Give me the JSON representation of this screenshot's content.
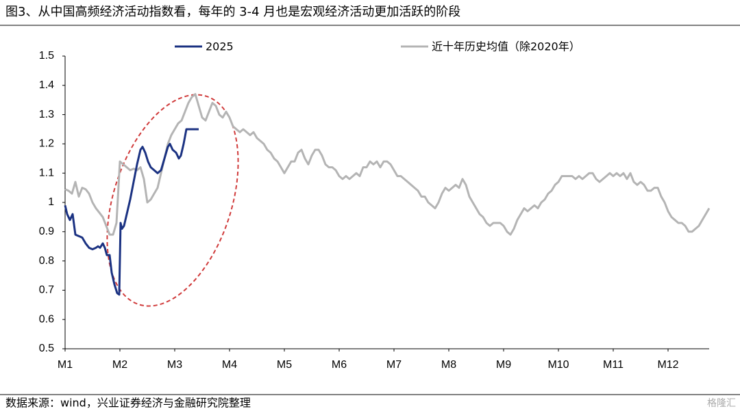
{
  "chart_data": {
    "type": "line",
    "title": "图3、从中国高频经济活动指数看，每年的 3-4 月也是宏观经济活动更加活跃的阶段",
    "xlim": [
      0,
      188
    ],
    "xticks": [
      {
        "value": 0,
        "label": "M1"
      },
      {
        "value": 16,
        "label": "M2"
      },
      {
        "value": 32,
        "label": "M3"
      },
      {
        "value": 48,
        "label": "M4"
      },
      {
        "value": 64,
        "label": "M5"
      },
      {
        "value": 80,
        "label": "M6"
      },
      {
        "value": 96,
        "label": "M7"
      },
      {
        "value": 112,
        "label": "M8"
      },
      {
        "value": 128,
        "label": "M9"
      },
      {
        "value": 144,
        "label": "M10"
      },
      {
        "value": 160,
        "label": "M11"
      },
      {
        "value": 176,
        "label": "M12"
      }
    ],
    "ylim": [
      0.5,
      1.5
    ],
    "yticks": [
      0.5,
      0.6,
      0.7,
      0.8,
      0.9,
      1,
      1.1,
      1.2,
      1.3,
      1.4,
      1.5
    ],
    "grid": false,
    "legend": "top",
    "series": [
      {
        "name": "2025",
        "color": "#1b3282",
        "x": [
          0,
          0.6,
          1.4,
          2.2,
          3,
          4,
          5,
          6,
          7,
          8,
          9,
          9.6,
          10.2,
          11,
          11.6,
          12.2,
          13,
          13.6,
          14.4,
          15.2,
          15.8,
          16.2,
          16.6,
          17.2,
          18,
          19,
          20,
          21,
          22,
          22.6,
          23.4,
          24.2,
          25,
          26,
          27,
          28,
          29,
          30,
          30.6,
          31.4,
          32.4,
          33.2,
          33.8,
          34.6,
          35.4,
          39
        ],
        "values": [
          0.99,
          0.96,
          0.94,
          0.96,
          0.89,
          0.885,
          0.88,
          0.86,
          0.845,
          0.84,
          0.845,
          0.85,
          0.845,
          0.86,
          0.845,
          0.82,
          0.82,
          0.76,
          0.72,
          0.69,
          0.685,
          0.93,
          0.91,
          0.92,
          0.96,
          1.01,
          1.07,
          1.13,
          1.18,
          1.19,
          1.17,
          1.14,
          1.12,
          1.11,
          1.1,
          1.11,
          1.15,
          1.19,
          1.2,
          1.18,
          1.17,
          1.15,
          1.16,
          1.2,
          1.25,
          1.25
        ]
      },
      {
        "name": "近十年历史均值（除2020年）",
        "color": "#b4b4b4",
        "x": [
          0,
          1,
          2,
          3,
          4,
          5,
          6,
          7,
          8,
          9,
          10,
          11,
          12,
          13,
          14,
          15,
          16,
          17,
          18,
          19,
          20,
          21,
          22,
          23,
          24,
          25,
          26,
          27,
          28,
          29,
          30,
          31,
          32,
          33,
          34,
          35,
          36,
          37,
          38,
          39,
          40,
          41,
          42,
          43,
          44,
          45,
          46,
          47,
          48,
          49,
          50,
          51,
          52,
          53,
          54,
          55,
          56,
          57,
          58,
          59,
          60,
          61,
          62,
          63,
          64,
          65,
          66,
          67,
          68,
          69,
          70,
          71,
          72,
          73,
          74,
          75,
          76,
          77,
          78,
          79,
          80,
          81,
          82,
          83,
          84,
          85,
          86,
          87,
          88,
          89,
          90,
          91,
          92,
          93,
          94,
          95,
          96,
          97,
          98,
          99,
          100,
          101,
          102,
          103,
          104,
          105,
          106,
          107,
          108,
          109,
          110,
          111,
          112,
          113,
          114,
          115,
          116,
          117,
          118,
          119,
          120,
          121,
          122,
          123,
          124,
          125,
          126,
          127,
          128,
          129,
          130,
          131,
          132,
          133,
          134,
          135,
          136,
          137,
          138,
          139,
          140,
          141,
          142,
          143,
          144,
          145,
          146,
          147,
          148,
          149,
          150,
          151,
          152,
          153,
          154,
          155,
          156,
          157,
          158,
          159,
          160,
          161,
          162,
          163,
          164,
          165,
          166,
          167,
          168,
          169,
          170,
          171,
          172,
          173,
          174,
          175,
          176,
          177,
          178,
          179,
          180,
          181,
          182,
          183,
          184,
          185,
          186,
          187,
          188
        ],
        "values": [
          1.045,
          1.04,
          1.03,
          1.07,
          1.02,
          1.05,
          1.045,
          1.03,
          1.0,
          0.98,
          0.965,
          0.95,
          0.92,
          0.89,
          0.89,
          0.93,
          1.14,
          1.13,
          1.12,
          1.11,
          1.115,
          1.11,
          1.12,
          1.08,
          1.0,
          1.01,
          1.03,
          1.05,
          1.1,
          1.15,
          1.2,
          1.23,
          1.25,
          1.27,
          1.28,
          1.31,
          1.34,
          1.36,
          1.37,
          1.33,
          1.29,
          1.28,
          1.31,
          1.34,
          1.33,
          1.3,
          1.29,
          1.31,
          1.29,
          1.26,
          1.25,
          1.24,
          1.25,
          1.24,
          1.23,
          1.24,
          1.22,
          1.21,
          1.2,
          1.18,
          1.17,
          1.15,
          1.14,
          1.12,
          1.1,
          1.12,
          1.14,
          1.14,
          1.17,
          1.18,
          1.15,
          1.13,
          1.16,
          1.18,
          1.18,
          1.16,
          1.13,
          1.12,
          1.12,
          1.11,
          1.09,
          1.08,
          1.09,
          1.08,
          1.09,
          1.1,
          1.09,
          1.12,
          1.12,
          1.14,
          1.13,
          1.14,
          1.12,
          1.14,
          1.14,
          1.13,
          1.11,
          1.09,
          1.09,
          1.08,
          1.07,
          1.06,
          1.05,
          1.04,
          1.02,
          1.02,
          1.0,
          0.99,
          0.98,
          1.0,
          1.03,
          1.05,
          1.04,
          1.05,
          1.06,
          1.05,
          1.08,
          1.06,
          1.02,
          1.0,
          0.98,
          0.96,
          0.95,
          0.93,
          0.92,
          0.93,
          0.93,
          0.93,
          0.92,
          0.9,
          0.89,
          0.91,
          0.94,
          0.96,
          0.98,
          0.97,
          0.98,
          0.99,
          0.98,
          1.0,
          1.01,
          1.03,
          1.04,
          1.06,
          1.07,
          1.09,
          1.09,
          1.09,
          1.09,
          1.08,
          1.09,
          1.08,
          1.09,
          1.1,
          1.1,
          1.08,
          1.07,
          1.08,
          1.09,
          1.1,
          1.09,
          1.1,
          1.09,
          1.1,
          1.08,
          1.1,
          1.07,
          1.06,
          1.07,
          1.06,
          1.04,
          1.04,
          1.05,
          1.05,
          1.02,
          1.0,
          0.97,
          0.95,
          0.94,
          0.93,
          0.93,
          0.92,
          0.9,
          0.9,
          0.91,
          0.92,
          0.94,
          0.96,
          0.98
        ]
      }
    ]
  },
  "source": "数据来源：wind，兴业证券经济与金融研究院整理",
  "watermark": "格隆汇"
}
